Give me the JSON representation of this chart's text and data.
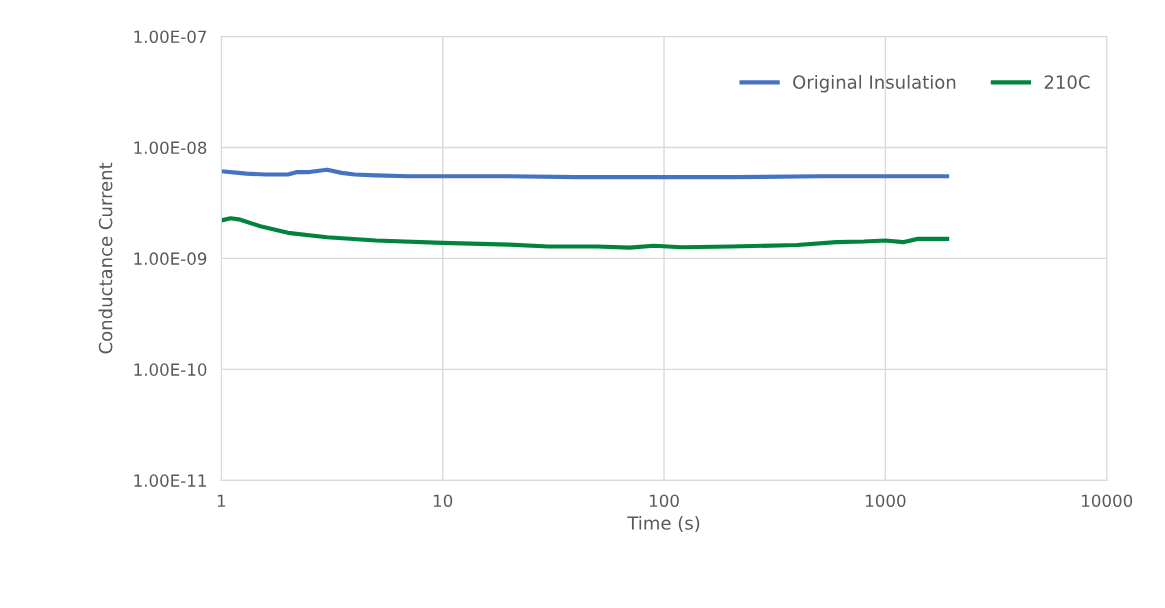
{
  "chart_data": {
    "type": "line",
    "xlabel": "Time (s)",
    "ylabel": "Conductance Current",
    "log": "xy",
    "xlim": [
      1,
      10000
    ],
    "xticks": [
      1,
      10,
      100,
      1000,
      10000
    ],
    "ylim": [
      1e-11,
      1e-07
    ],
    "yticks": [
      {
        "value": 1e-11,
        "label": "1.00E-11"
      },
      {
        "value": 1e-10,
        "label": "1.00E-10"
      },
      {
        "value": 1e-09,
        "label": "1.00E-09"
      },
      {
        "value": 1e-08,
        "label": "1.00E-08"
      },
      {
        "value": 1e-07,
        "label": "1.00E-07"
      }
    ],
    "grid": true,
    "legend": "top right",
    "marker": "none",
    "line_style": "solid",
    "series": [
      {
        "name": "Original Insulation",
        "color": "#4472c4",
        "x": [
          1,
          1.3,
          1.6,
          2,
          2.2,
          2.5,
          3,
          3.5,
          4,
          5,
          7,
          10,
          20,
          40,
          70,
          100,
          200,
          500,
          1000,
          1500,
          1900
        ],
        "values": [
          6.1e-09,
          5.8e-09,
          5.7e-09,
          5.7e-09,
          6e-09,
          6e-09,
          6.3e-09,
          5.9e-09,
          5.7e-09,
          5.6e-09,
          5.5e-09,
          5.5e-09,
          5.5e-09,
          5.4e-09,
          5.4e-09,
          5.4e-09,
          5.4e-09,
          5.5e-09,
          5.5e-09,
          5.5e-09,
          5.5e-09
        ]
      },
      {
        "name": "210C",
        "color": "#00843d",
        "x": [
          1,
          1.1,
          1.2,
          1.5,
          2,
          3,
          5,
          10,
          20,
          30,
          50,
          70,
          90,
          120,
          200,
          400,
          600,
          800,
          1000,
          1200,
          1400,
          1900
        ],
        "values": [
          2.2e-09,
          2.3e-09,
          2.25e-09,
          1.95e-09,
          1.7e-09,
          1.55e-09,
          1.45e-09,
          1.38e-09,
          1.33e-09,
          1.28e-09,
          1.28e-09,
          1.25e-09,
          1.3e-09,
          1.26e-09,
          1.28e-09,
          1.32e-09,
          1.4e-09,
          1.42e-09,
          1.45e-09,
          1.4e-09,
          1.5e-09,
          1.5e-09
        ]
      }
    ]
  }
}
